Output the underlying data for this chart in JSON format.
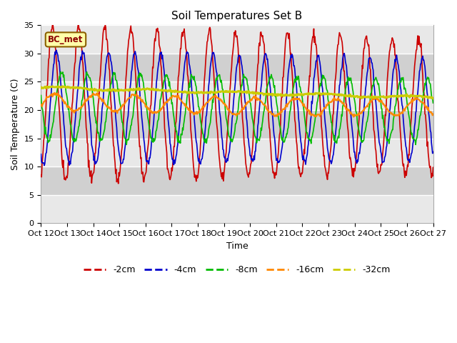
{
  "title": "Soil Temperatures Set B",
  "xlabel": "Time",
  "ylabel": "Soil Temperature (C)",
  "ylim": [
    0,
    35
  ],
  "yticks": [
    0,
    5,
    10,
    15,
    20,
    25,
    30,
    35
  ],
  "xtick_labels": [
    "Oct 12",
    "Oct 13",
    "Oct 14",
    "Oct 15",
    "Oct 16",
    "Oct 17",
    "Oct 18",
    "Oct 19",
    "Oct 20",
    "Oct 21",
    "Oct 22",
    "Oct 23",
    "Oct 24",
    "Oct 25",
    "Oct 26",
    "Oct 27"
  ],
  "annotation_text": "BC_met",
  "fig_bg_color": "#ffffff",
  "plot_bg_color": "#ffffff",
  "band_colors": [
    "#e8e8e8",
    "#d8d8d8"
  ],
  "series": {
    "-2cm": {
      "color": "#cc0000",
      "lw": 1.2
    },
    "-4cm": {
      "color": "#0000cc",
      "lw": 1.2
    },
    "-8cm": {
      "color": "#00bb00",
      "lw": 1.2
    },
    "-16cm": {
      "color": "#ff8800",
      "lw": 1.5
    },
    "-32cm": {
      "color": "#cccc00",
      "lw": 2.0
    }
  },
  "legend_labels": [
    "-2cm",
    "-4cm",
    "-8cm",
    "-16cm",
    "-32cm"
  ],
  "legend_colors": [
    "#cc0000",
    "#0000cc",
    "#00bb00",
    "#ff8800",
    "#cccc00"
  ]
}
